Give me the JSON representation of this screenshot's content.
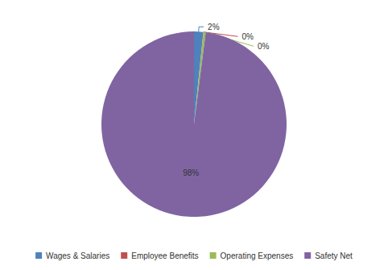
{
  "chart_data": {
    "type": "pie",
    "categories": [
      "Wages & Salaries",
      "Employee Benefits",
      "Operating Expenses",
      "Safety Net"
    ],
    "values": [
      1.6,
      0.03,
      0.4,
      97.97
    ],
    "value_labels": [
      "2%",
      "0%",
      "0%",
      "98%"
    ],
    "colors": [
      "#4f81bd",
      "#c0504d",
      "#9bbb59",
      "#8064a2"
    ],
    "data_labels": true,
    "legend": "bottom"
  }
}
